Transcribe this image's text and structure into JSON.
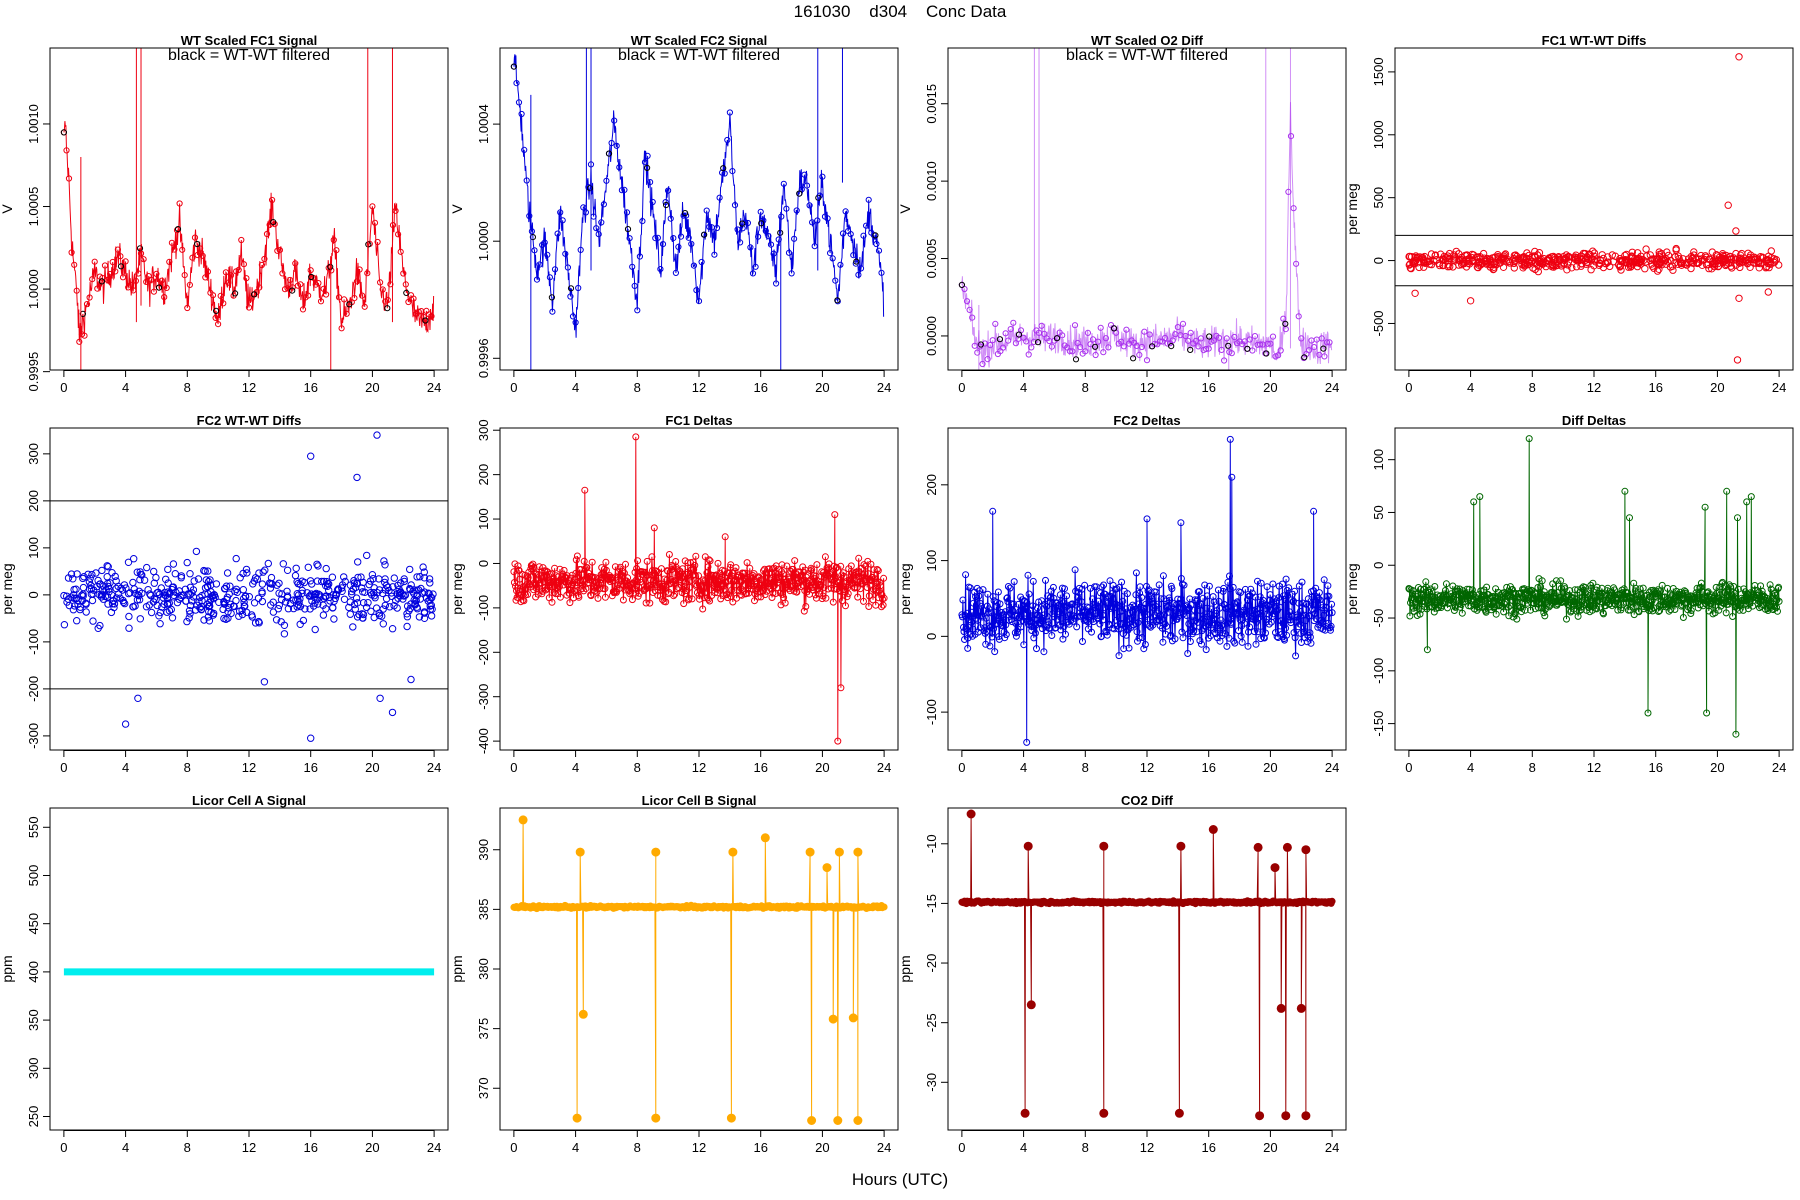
{
  "page": {
    "title": "161030    d304    Conc Data",
    "xlabel": "Hours (UTC)"
  },
  "chart_data": [
    {
      "id": "wt-fc1-signal",
      "type": "scatter",
      "title": "WT Scaled FC1 Signal",
      "annotation": "black = WT-WT filtered",
      "ylabel": "V",
      "xlim": [
        -0.9,
        24.9
      ],
      "ylim": [
        0.99951,
        1.00146
      ],
      "yticks": [
        0.9995,
        1.0,
        1.0005,
        1.001
      ],
      "ytick_labels": [
        "0.9995",
        "1.0000",
        "1.0005",
        "1.0010"
      ],
      "xticks": [
        0,
        4,
        8,
        12,
        16,
        20,
        24
      ],
      "series": [
        {
          "color": "#ee0011",
          "style": "lines+points",
          "x": [
            0,
            0.1,
            0.2,
            0.3,
            0.4,
            0.5,
            0.7,
            0.9,
            1.0,
            1.2,
            1.5,
            2.0,
            2.5,
            3.0,
            3.5,
            4.0,
            4.5,
            5.0,
            5.5,
            6.0,
            6.5,
            7.0,
            7.5,
            8.0,
            8.5,
            9.0,
            9.5,
            10.0,
            10.5,
            11.0,
            11.5,
            12.0,
            12.5,
            13.0,
            13.5,
            14.0,
            14.5,
            15.0,
            15.5,
            16.0,
            16.5,
            17.0,
            17.5,
            18.0,
            18.5,
            19.0,
            19.5,
            20.0,
            20.5,
            21.0,
            21.5,
            22.0,
            22.5,
            23.0,
            23.5,
            24.0
          ],
          "y": [
            1.0009,
            1.001,
            1.0008,
            1.0007,
            1.0005,
            1.0003,
            1.0001,
            0.9999,
            0.9997,
            0.9998,
            0.9999,
            1.0001,
            1.0,
            1.0001,
            1.0002,
            1.0001,
            1.0,
            1.0002,
            1.0,
            1.0001,
            1.0,
            1.0002,
            1.0004,
            0.9999,
            1.0003,
            1.0002,
            1.0,
            0.9998,
            1.0001,
            1.0,
            1.0002,
            0.9999,
            1.0,
            1.0002,
            1.0005,
            1.0002,
            1.0,
            1.0001,
            0.9999,
            1.0001,
            1.0,
            1.0,
            1.0003,
            0.9998,
            0.9999,
            1.0001,
            0.9999,
            1.0005,
            1.0,
            0.9999,
            1.0005,
            1.0001,
            0.9999,
            0.9998,
            0.9998,
            0.9999
          ]
        }
      ]
    },
    {
      "id": "wt-fc2-signal",
      "type": "scatter",
      "title": "WT Scaled FC2 Signal",
      "annotation": "black = WT-WT filtered",
      "ylabel": "V",
      "xlim": [
        -0.9,
        24.9
      ],
      "ylim": [
        0.99956,
        1.00066
      ],
      "yticks": [
        0.9996,
        1.0,
        1.0004
      ],
      "ytick_labels": [
        "0.9996",
        "1.0000",
        "1.0004"
      ],
      "xticks": [
        0,
        4,
        8,
        12,
        16,
        20,
        24
      ],
      "series": [
        {
          "color": "#0000dd",
          "style": "lines+points",
          "x": [
            0,
            0.1,
            0.3,
            0.5,
            0.8,
            1.0,
            1.5,
            2.0,
            2.5,
            3.0,
            3.5,
            4.0,
            4.5,
            5.0,
            5.5,
            6.0,
            6.5,
            7.0,
            7.5,
            8.0,
            8.5,
            9.0,
            9.5,
            10.0,
            10.5,
            11.0,
            11.5,
            12.0,
            12.5,
            13.0,
            13.5,
            14.0,
            14.5,
            15.0,
            15.5,
            16.0,
            16.5,
            17.0,
            17.5,
            18.0,
            18.5,
            19.0,
            19.5,
            20.0,
            20.5,
            21.0,
            21.5,
            22.0,
            22.5,
            23.0,
            23.5,
            24.0
          ],
          "y": [
            1.00064,
            1.00058,
            1.0005,
            1.0004,
            1.0002,
            1.0001,
            0.9999,
            1.0,
            0.9998,
            1.0001,
            0.9999,
            0.9997,
            1.0001,
            1.0002,
            1.0,
            1.0002,
            1.0004,
            1.0002,
            1.0,
            0.9998,
            1.0003,
            1.0001,
            0.9999,
            1.0002,
            0.9999,
            1.0001,
            1.0,
            0.9998,
            1.0001,
            1.0,
            1.0002,
            1.0004,
            1.0,
            1.0001,
            0.9999,
            1.0001,
            1.0,
            0.9999,
            1.0002,
            0.9999,
            1.0002,
            1.0002,
            1.0,
            1.0002,
            1.0,
            0.9998,
            1.0001,
            1.0,
            0.9999,
            1.0001,
            1.0,
            0.9998
          ]
        }
      ]
    },
    {
      "id": "wt-o2-diff",
      "type": "scatter",
      "title": "WT Scaled O2 Diff",
      "annotation": "black = WT-WT filtered",
      "ylabel": "V",
      "xlim": [
        -0.9,
        24.9
      ],
      "ylim": [
        -0.00022,
        0.00186
      ],
      "yticks": [
        0.0,
        0.0005,
        0.001,
        0.0015
      ],
      "ytick_labels": [
        "0.0000",
        "0.0005",
        "0.0010",
        "0.0015"
      ],
      "xticks": [
        0,
        4,
        8,
        12,
        16,
        20,
        24
      ],
      "series": [
        {
          "color": "#aa33ee",
          "style": "lines+points",
          "x": [
            0,
            0.2,
            0.4,
            0.6,
            0.8,
            1.0,
            1.5,
            2.0,
            3.0,
            4.0,
            5.0,
            6.0,
            7.0,
            8.0,
            9.0,
            10.0,
            11.0,
            12.0,
            13.0,
            14.0,
            15.0,
            16.0,
            17.0,
            18.0,
            19.0,
            20.0,
            20.5,
            21.0,
            21.3,
            21.5,
            21.8,
            22.0,
            22.5,
            23.0,
            23.5,
            24.0
          ],
          "y": [
            0.0003,
            0.00025,
            0.0002,
            0.0001,
            0.0,
            -5e-05,
            -0.0001,
            -5e-05,
            -3e-05,
            0.0,
            -2e-05,
            0.0,
            -3e-05,
            -5e-05,
            -2e-05,
            0.0,
            -5e-05,
            -3e-05,
            -2e-05,
            0.0,
            -5e-05,
            -5e-05,
            -3e-05,
            -3e-05,
            -5e-05,
            -5e-05,
            -0.00015,
            0.0001,
            0.0015,
            0.0008,
            0.0002,
            -5e-05,
            -5e-05,
            -0.0001,
            -5e-05,
            -8e-05
          ]
        }
      ]
    },
    {
      "id": "fc1-wt-wt-diffs",
      "type": "scatter",
      "title": "FC1 WT-WT Diffs",
      "ylabel": "per meg",
      "xlim": [
        -0.9,
        24.9
      ],
      "ylim": [
        -870,
        1690
      ],
      "yticks": [
        -500,
        0,
        500,
        1000,
        1500
      ],
      "ytick_labels": [
        "-500",
        "0",
        "500",
        "1000",
        "1500"
      ],
      "xticks": [
        0,
        4,
        8,
        12,
        16,
        20,
        24
      ],
      "reference_lines": [
        200,
        -200
      ],
      "series": [
        {
          "color": "#ee0011",
          "style": "points",
          "spread": 75,
          "outliers_x": [
            21.4,
            20.7,
            21.3,
            21.4,
            4.0,
            0.4,
            21.2,
            23.3
          ],
          "outliers_y": [
            1620,
            440,
            -790,
            -300,
            -320,
            -260,
            235,
            -250
          ]
        }
      ]
    },
    {
      "id": "fc2-wt-wt-diffs",
      "type": "scatter",
      "title": "FC2 WT-WT Diffs",
      "ylabel": "per meg",
      "xlim": [
        -0.9,
        24.9
      ],
      "ylim": [
        -330,
        355
      ],
      "yticks": [
        -300,
        -200,
        -100,
        0,
        100,
        200,
        300
      ],
      "ytick_labels": [
        "-300",
        "-200",
        "-100",
        "0",
        "100",
        "200",
        "300"
      ],
      "xticks": [
        0,
        4,
        8,
        12,
        16,
        20,
        24
      ],
      "reference_lines": [
        200,
        -200
      ],
      "series": [
        {
          "color": "#0000dd",
          "style": "points",
          "spread": 70,
          "outliers_x": [
            20.3,
            16.0,
            19.0,
            4.0,
            16.0,
            4.8,
            13.0,
            20.5,
            21.3,
            22.5
          ],
          "outliers_y": [
            340,
            295,
            250,
            -275,
            -305,
            -220,
            -185,
            -220,
            -250,
            -180
          ]
        }
      ]
    },
    {
      "id": "fc1-deltas",
      "type": "line",
      "title": "FC1 Deltas",
      "ylabel": "per meg",
      "xlim": [
        -0.9,
        24.9
      ],
      "ylim": [
        -420,
        305
      ],
      "yticks": [
        -400,
        -300,
        -200,
        -100,
        0,
        100,
        200,
        300
      ],
      "ytick_labels": [
        "-400",
        "-300",
        "-200",
        "-100",
        "0",
        "100",
        "200",
        "300"
      ],
      "xticks": [
        0,
        4,
        8,
        12,
        16,
        20,
        24
      ],
      "series": [
        {
          "color": "#ee0011",
          "style": "lines+points",
          "center": -40,
          "spread": 55,
          "spikes_x": [
            7.9,
            4.6,
            21.0,
            21.2,
            20.8,
            9.1,
            13.7
          ],
          "spikes_y": [
            285,
            165,
            -400,
            -280,
            110,
            80,
            60
          ]
        }
      ]
    },
    {
      "id": "fc2-deltas",
      "type": "line",
      "title": "FC2 Deltas",
      "ylabel": "per meg",
      "xlim": [
        -0.9,
        24.9
      ],
      "ylim": [
        -150,
        275
      ],
      "yticks": [
        -100,
        0,
        100,
        200
      ],
      "ytick_labels": [
        "-100",
        "0",
        "100",
        "200"
      ],
      "xticks": [
        0,
        4,
        8,
        12,
        16,
        20,
        24
      ],
      "series": [
        {
          "color": "#0000dd",
          "style": "lines+points",
          "center": 30,
          "spread": 48,
          "spikes_x": [
            17.4,
            17.5,
            4.2,
            2.0,
            12.0,
            22.8,
            14.2
          ],
          "spikes_y": [
            260,
            210,
            -140,
            165,
            155,
            165,
            150
          ]
        }
      ]
    },
    {
      "id": "diff-deltas",
      "type": "line",
      "title": "Diff Deltas",
      "ylabel": "per meg",
      "xlim": [
        -0.9,
        24.9
      ],
      "ylim": [
        -175,
        130
      ],
      "yticks": [
        -150,
        -100,
        -50,
        0,
        50,
        100
      ],
      "ytick_labels": [
        "-150",
        "-100",
        "-50",
        "0",
        "50",
        "100"
      ],
      "xticks": [
        0,
        4,
        8,
        12,
        16,
        20,
        24
      ],
      "series": [
        {
          "color": "#006600",
          "style": "lines+points",
          "center": -32,
          "spread": 16,
          "spikes_x": [
            7.8,
            4.2,
            4.6,
            14.0,
            14.3,
            19.2,
            20.6,
            21.3,
            21.9,
            22.2,
            15.5,
            19.3,
            21.2,
            1.2
          ],
          "spikes_y": [
            120,
            60,
            65,
            70,
            45,
            55,
            70,
            45,
            60,
            65,
            -140,
            -140,
            -160,
            -80
          ]
        }
      ]
    },
    {
      "id": "licor-cell-a",
      "type": "line",
      "title": "Licor Cell A Signal",
      "ylabel": "ppm",
      "xlim": [
        -0.9,
        24.9
      ],
      "ylim": [
        236,
        570
      ],
      "yticks": [
        250,
        300,
        350,
        400,
        450,
        500,
        550
      ],
      "ytick_labels": [
        "250",
        "300",
        "350",
        "400",
        "450",
        "500",
        "550"
      ],
      "xticks": [
        0,
        4,
        8,
        12,
        16,
        20,
        24
      ],
      "series": [
        {
          "color": "#00eeee",
          "style": "thick-line",
          "x": [
            0,
            24
          ],
          "y": [
            400,
            400
          ]
        }
      ]
    },
    {
      "id": "licor-cell-b",
      "type": "line",
      "title": "Licor Cell B Signal",
      "ylabel": "ppm",
      "xlim": [
        -0.9,
        24.9
      ],
      "ylim": [
        366.5,
        393.5
      ],
      "yticks": [
        370,
        375,
        380,
        385,
        390
      ],
      "ytick_labels": [
        "370",
        "375",
        "380",
        "385",
        "390"
      ],
      "xticks": [
        0,
        4,
        8,
        12,
        16,
        20,
        24
      ],
      "series": [
        {
          "color": "#ffaa00",
          "style": "lines+points",
          "baseline": 385.2,
          "drops_x": [
            4.1,
            4.5,
            9.2,
            14.1,
            19.3,
            20.7,
            21.0,
            22.0,
            22.3
          ],
          "drops_y": [
            367.5,
            376.2,
            367.5,
            367.5,
            367.3,
            375.8,
            367.3,
            375.9,
            367.3
          ],
          "peaks_x": [
            0.6,
            4.3,
            9.2,
            14.2,
            16.3,
            19.2,
            20.3,
            21.1,
            22.3
          ],
          "peaks_y": [
            392.5,
            389.8,
            389.8,
            389.8,
            391.0,
            389.8,
            388.5,
            389.8,
            389.8
          ]
        }
      ]
    },
    {
      "id": "co2-diff",
      "type": "line",
      "title": "CO2 Diff",
      "ylabel": "ppm",
      "xlim": [
        -0.9,
        24.9
      ],
      "ylim": [
        -34,
        -7
      ],
      "yticks": [
        -30,
        -25,
        -20,
        -15,
        -10
      ],
      "ytick_labels": [
        "-30",
        "-25",
        "-20",
        "-15",
        "-10"
      ],
      "xticks": [
        0,
        4,
        8,
        12,
        16,
        20,
        24
      ],
      "series": [
        {
          "color": "#990000",
          "style": "lines+points",
          "baseline": -14.9,
          "drops_x": [
            4.1,
            4.5,
            9.2,
            14.1,
            19.3,
            20.7,
            21.0,
            22.0,
            22.3
          ],
          "drops_y": [
            -32.6,
            -23.5,
            -32.6,
            -32.6,
            -32.8,
            -23.8,
            -32.8,
            -23.8,
            -32.8
          ],
          "peaks_x": [
            0.6,
            4.3,
            9.2,
            14.2,
            16.3,
            19.2,
            20.3,
            21.1,
            22.3
          ],
          "peaks_y": [
            -7.5,
            -10.2,
            -10.2,
            -10.2,
            -8.8,
            -10.3,
            -12.0,
            -10.3,
            -10.5
          ]
        }
      ]
    }
  ]
}
